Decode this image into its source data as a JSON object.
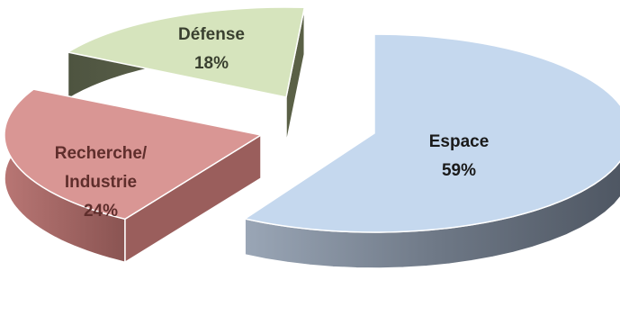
{
  "chart_data": {
    "type": "pie",
    "style": "3d-exploded",
    "title": "",
    "slices": [
      {
        "label_lines": [
          "Espace"
        ],
        "percent_label": "59%",
        "value": 59,
        "top_color": "#c5d8ee",
        "side_color": "#7c8797",
        "label_color": "#1a1a1a"
      },
      {
        "label_lines": [
          "Recherche/",
          "Industrie"
        ],
        "percent_label": "24%",
        "value": 24,
        "top_color": "#d99694",
        "side_color": "#9a5e5c",
        "label_color": "#5f2e2c"
      },
      {
        "label_lines": [
          "Défense"
        ],
        "percent_label": "18%",
        "value": 18,
        "top_color": "#d6e4bd",
        "side_color": "#5a6046",
        "label_color": "#3a4030"
      }
    ]
  }
}
